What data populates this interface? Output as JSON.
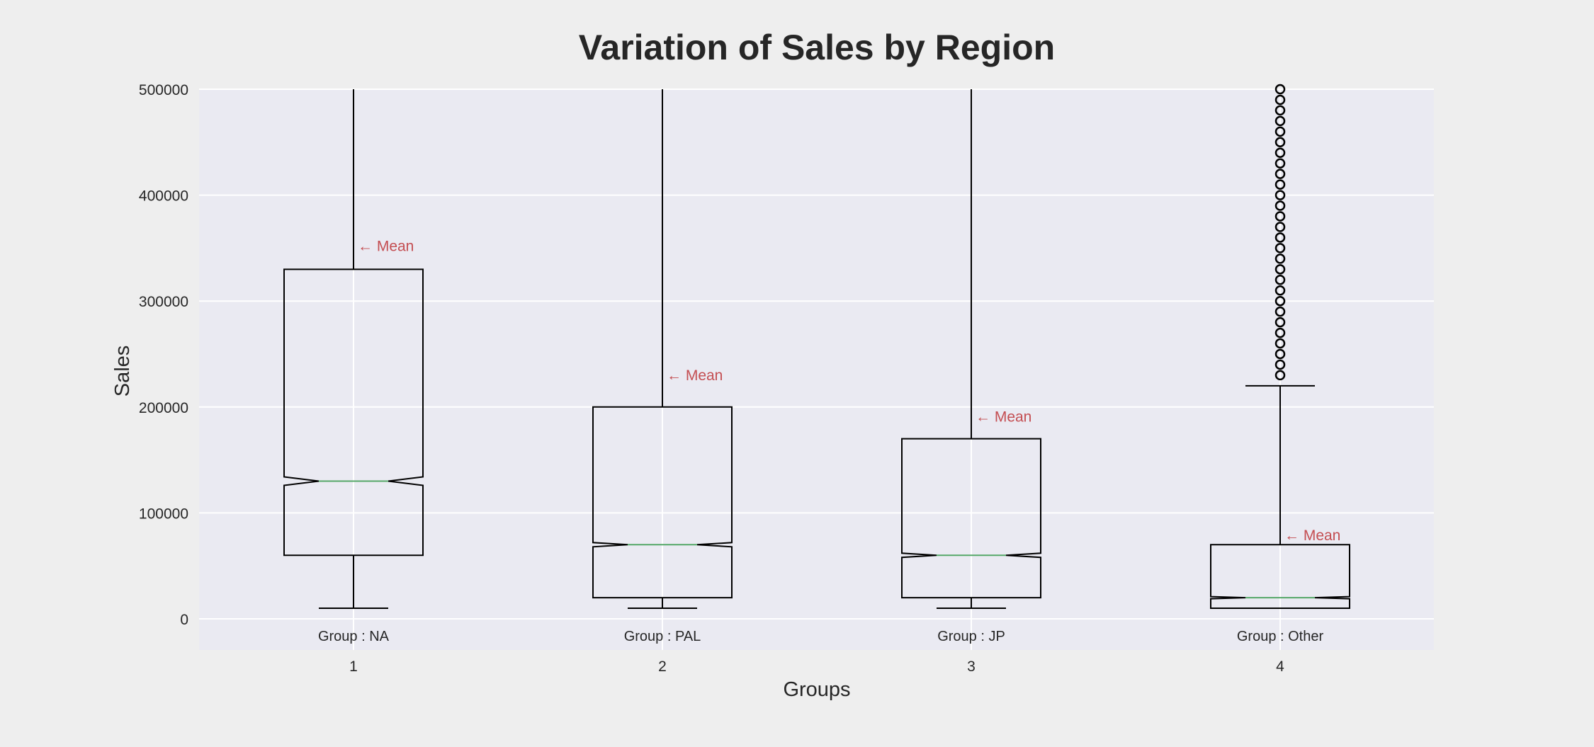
{
  "chart_data": {
    "type": "box",
    "title": "Variation of Sales by Region",
    "xlabel": "Groups",
    "ylabel": "Sales",
    "ylim": [
      -30000,
      500000
    ],
    "yticks": [
      0,
      100000,
      200000,
      300000,
      400000,
      500000
    ],
    "grid": true,
    "notched": true,
    "mean_annotation": "← Mean",
    "groups": [
      {
        "position": "1",
        "label": "Group : NA",
        "whisker_low": 10000,
        "q1": 60000,
        "median": 130000,
        "q3": 330000,
        "whisker_high": 500000,
        "mean": 352000,
        "notch_low": 126000,
        "notch_high": 134000,
        "outliers": []
      },
      {
        "position": "2",
        "label": "Group : PAL",
        "whisker_low": 10000,
        "q1": 20000,
        "median": 70000,
        "q3": 200000,
        "whisker_high": 500000,
        "mean": 230000,
        "notch_low": 68000,
        "notch_high": 72000,
        "outliers": []
      },
      {
        "position": "3",
        "label": "Group : JP",
        "whisker_low": 10000,
        "q1": 20000,
        "median": 60000,
        "q3": 170000,
        "whisker_high": 500000,
        "mean": 191000,
        "notch_low": 58000,
        "notch_high": 62000,
        "outliers": []
      },
      {
        "position": "4",
        "label": "Group : Other",
        "whisker_low": 10000,
        "q1": 10000,
        "median": 20000,
        "q3": 70000,
        "whisker_high": 220000,
        "mean": 79000,
        "notch_low": 19000,
        "notch_high": 21000,
        "outliers": [
          230000,
          240000,
          250000,
          260000,
          270000,
          280000,
          290000,
          300000,
          310000,
          320000,
          330000,
          340000,
          350000,
          360000,
          370000,
          380000,
          390000,
          400000,
          410000,
          420000,
          430000,
          440000,
          450000,
          460000,
          470000,
          480000,
          490000,
          500000
        ]
      }
    ],
    "colors": {
      "background": "#eeeeee",
      "plot_background": "#eaeaf2",
      "grid": "#ffffff",
      "box": "#000000",
      "median": "#55a868",
      "mean_text": "#c44e52",
      "text": "#262626"
    }
  }
}
